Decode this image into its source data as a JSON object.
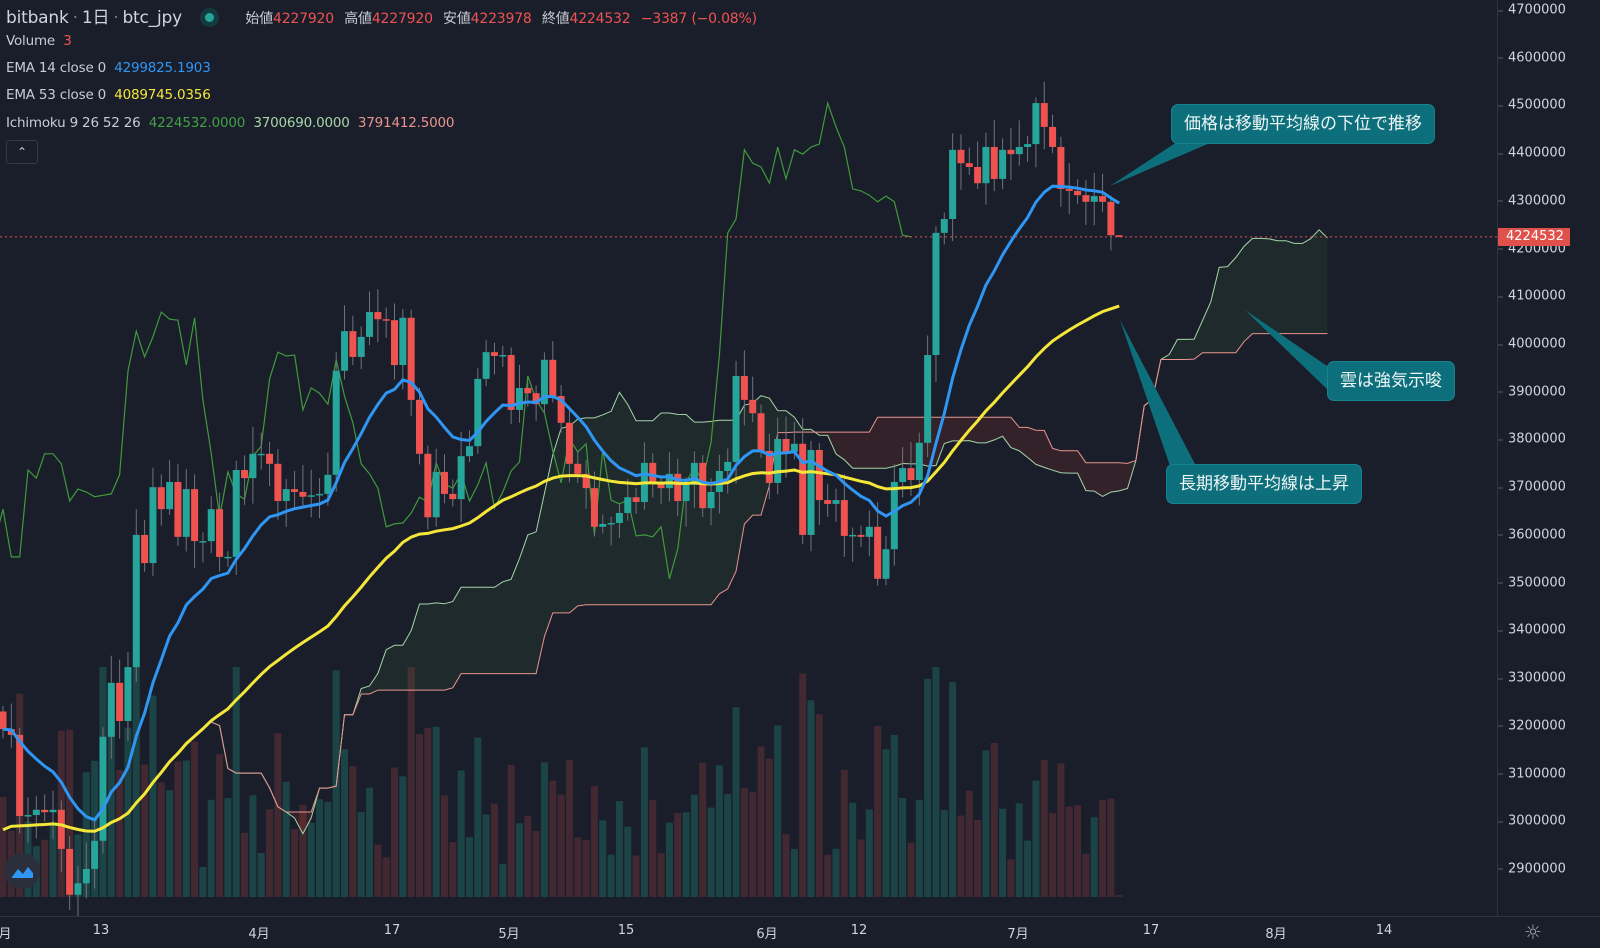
{
  "header": {
    "exchange": "bitbank",
    "interval": "1日",
    "symbol": "btc_jpy",
    "open_label": "始値",
    "open": "4227920",
    "high_label": "高値",
    "high": "4227920",
    "low_label": "安値",
    "low": "4223978",
    "close_label": "終値",
    "close": "4224532",
    "change": "−3387 (−0.08%)"
  },
  "indicators": {
    "volume": {
      "label": "Volume",
      "value": "3"
    },
    "ema14": {
      "label": "EMA 14 close 0",
      "value": "4299825.1903",
      "color": "#2f96f3"
    },
    "ema53": {
      "label": "EMA 53 close 0",
      "value": "4089745.0356",
      "color": "#f5e63a"
    },
    "ichimoku": {
      "label": "Ichimoku 9 26 52 26",
      "lagging": "4224532.0000",
      "span_a": "3700690.0000",
      "span_b": "3791412.5000",
      "lagging_color": "#3f9a3c",
      "span_a_color": "#a5d6a7",
      "span_b_color": "#e8948f"
    }
  },
  "collapse_icon": "chevron-up-icon",
  "last_price_label": "4224532",
  "annotations": [
    {
      "text": "価格は移動平均線の下位で推移"
    },
    {
      "text": "雲は強気示唆"
    },
    {
      "text": "長期移動平均線は上昇"
    }
  ],
  "colors": {
    "up": "#26a69a",
    "down": "#ef5350",
    "background": "#1a1e2a",
    "callout": "#0d6f7b"
  },
  "chart_data": {
    "type": "candlestick",
    "title": "",
    "ylim": [
      2900000,
      4700000
    ],
    "grid": false,
    "y_ticks": [
      "4700000",
      "4600000",
      "4500000",
      "4400000",
      "4300000",
      "4200000",
      "4100000",
      "4000000",
      "3900000",
      "3800000",
      "3700000",
      "3600000",
      "3500000",
      "3400000",
      "3300000",
      "3200000",
      "3100000",
      "3000000",
      "2900000"
    ],
    "x_ticks": [
      "月",
      "13",
      "4月",
      "17",
      "5月",
      "15",
      "6月",
      "12",
      "7月",
      "17",
      "8月",
      "14"
    ],
    "close": [
      3193000,
      3181000,
      3011000,
      3013000,
      3024000,
      3019000,
      3024000,
      2942000,
      2846000,
      2870000,
      2900000,
      2959000,
      3177000,
      3290000,
      3210000,
      3323000,
      3600000,
      3541000,
      3700000,
      3654000,
      3711000,
      3596000,
      3696000,
      3587000,
      3587000,
      3654000,
      3554000,
      3554000,
      3736000,
      3719000,
      3770000,
      3770000,
      3749000,
      3671000,
      3696000,
      3690000,
      3680000,
      3683000,
      3686000,
      3726000,
      3944000,
      4027000,
      3973000,
      4015000,
      4067000,
      4052000,
      4050000,
      3956000,
      4055000,
      3883000,
      3770000,
      3637000,
      3732000,
      3686000,
      3675000,
      3765000,
      3786000,
      3927000,
      3983000,
      3975000,
      3977000,
      3862000,
      3908000,
      3897000,
      3874000,
      3967000,
      3891000,
      3835000,
      3749000,
      3728000,
      3698000,
      3617000,
      3623000,
      3625000,
      3646000,
      3679000,
      3669000,
      3751000,
      3707000,
      3698000,
      3728000,
      3671000,
      3705000,
      3751000,
      3656000,
      3690000,
      3734000,
      3753000,
      3933000,
      3883000,
      3855000,
      3776000,
      3709000,
      3801000,
      3774000,
      3791000,
      3600000,
      3778000,
      3673000,
      3665000,
      3673000,
      3598000,
      3600000,
      3596000,
      3617000,
      3508000,
      3570000,
      3711000,
      3740000,
      3715000,
      3793000,
      3977000,
      4233000,
      4262000,
      4407000,
      4379000,
      4371000,
      4337000,
      4413000,
      4346000,
      4407000,
      4398000,
      4413000,
      4419000,
      4505000,
      4455000,
      4413000,
      4325000,
      4321000,
      4312000,
      4298000,
      4310000,
      4298000,
      4227920,
      4224532
    ],
    "last_candle": {
      "open": 4227920,
      "high": 4227920,
      "low": 4223978,
      "close": 4224532
    }
  }
}
